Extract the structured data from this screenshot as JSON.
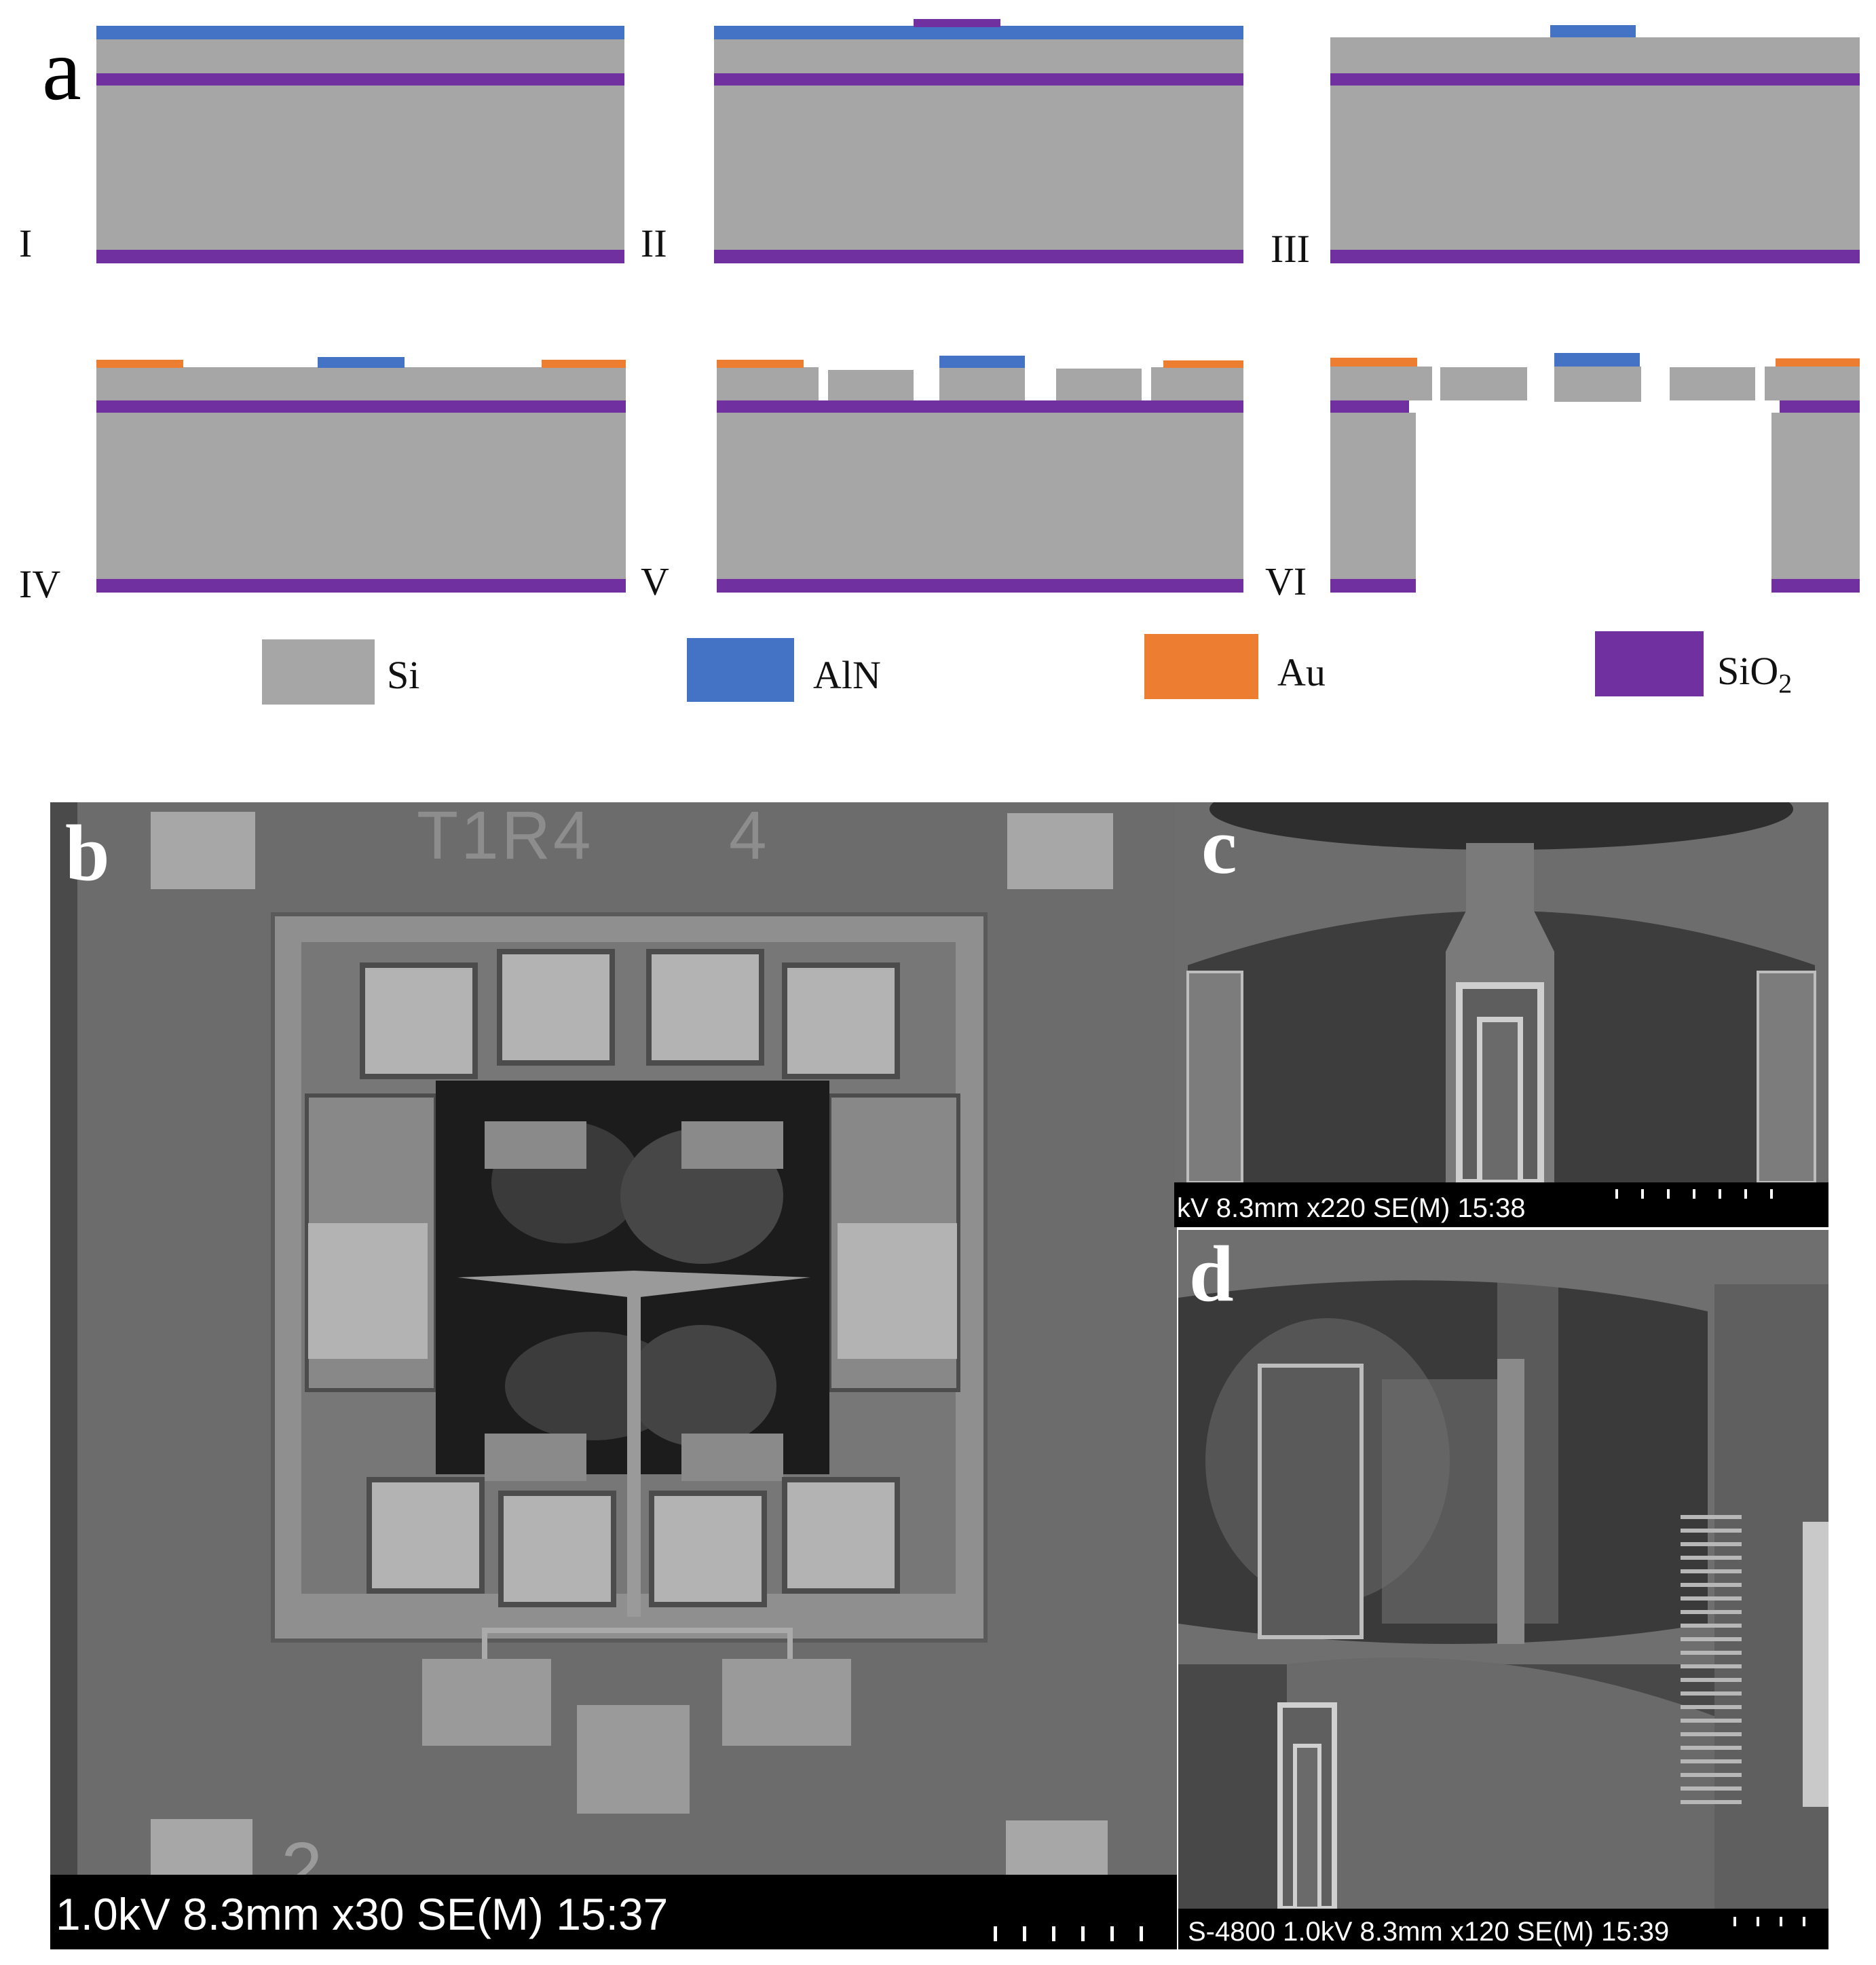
{
  "panel_a": {
    "letter": "a",
    "steps": [
      "I",
      "II",
      "III",
      "IV",
      "V",
      "VI"
    ]
  },
  "legend": [
    {
      "label": "Si",
      "color": "#a6a6a6"
    },
    {
      "label": "AlN",
      "color": "#4472c4"
    },
    {
      "label": "Au",
      "color": "#ed7d31"
    },
    {
      "label": "SiO",
      "sub": "2",
      "color": "#7030a0"
    }
  ],
  "materials": {
    "si": "#a6a6a6",
    "aln": "#4472c4",
    "au": "#ed7d31",
    "sio2": "#7030a0"
  },
  "panel_b": {
    "letter": "b",
    "chip_label_top": "T1R4",
    "chip_label_num": "4",
    "chip_label_bottom": "2",
    "info": "1.0kV 8.3mm x30 SE(M) 15:37"
  },
  "panel_c": {
    "letter": "c",
    "info": "kV 8.3mm x220 SE(M) 15:38"
  },
  "panel_d": {
    "letter": "d",
    "info": "S-4800 1.0kV 8.3mm x120 SE(M) 15:39"
  }
}
